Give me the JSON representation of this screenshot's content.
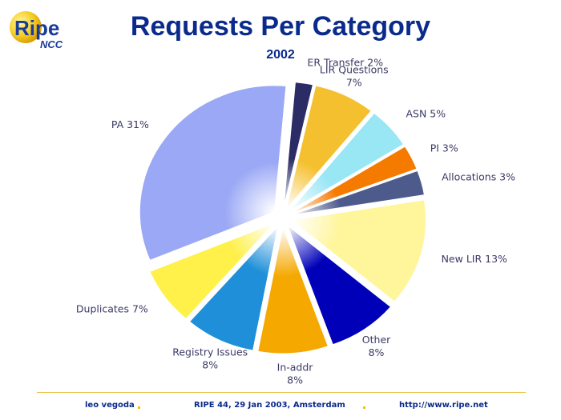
{
  "logo": {
    "text_main": "Ripe",
    "text_sub": "NCC"
  },
  "header": {
    "title": "Requests Per Category",
    "subtitle": "2002"
  },
  "chart_data": {
    "type": "pie",
    "title": "Requests Per Category",
    "subtitle": "2002",
    "slices": [
      {
        "name": "ER Transfer",
        "label": "ER Transfer 2%",
        "label_lines": [
          "ER Transfer 2%"
        ],
        "value": 2,
        "color": "#2b2b66"
      },
      {
        "name": "LIR Questions",
        "label": "LIR Questions 7%",
        "label_lines": [
          "LIR Questions",
          "7%"
        ],
        "value": 7,
        "color": "#f5c030"
      },
      {
        "name": "ASN",
        "label": "ASN 5%",
        "label_lines": [
          "ASN 5%"
        ],
        "value": 5,
        "color": "#99e6f5"
      },
      {
        "name": "PI",
        "label": "PI 3%",
        "label_lines": [
          "PI 3%"
        ],
        "value": 3,
        "color": "#f57a00"
      },
      {
        "name": "Allocations",
        "label": "Allocations 3%",
        "label_lines": [
          "Allocations 3%"
        ],
        "value": 3,
        "color": "#4d5a8c"
      },
      {
        "name": "New LIR",
        "label": "New LIR 13%",
        "label_lines": [
          "New LIR 13%"
        ],
        "value": 13,
        "color": "#fff59a"
      },
      {
        "name": "Other",
        "label": "Other 8%",
        "label_lines": [
          "Other",
          "8%"
        ],
        "value": 8,
        "color": "#0000b8"
      },
      {
        "name": "In-addr",
        "label": "In-addr 8%",
        "label_lines": [
          "In-addr",
          "8%"
        ],
        "value": 8,
        "color": "#f5a800"
      },
      {
        "name": "Registry Issues",
        "label": "Registry Issues 8%",
        "label_lines": [
          "Registry Issues",
          "8%"
        ],
        "value": 8,
        "color": "#1e8fd8"
      },
      {
        "name": "Duplicates",
        "label": "Duplicates 7%",
        "label_lines": [
          "Duplicates 7%"
        ],
        "value": 7,
        "color": "#fff04a"
      },
      {
        "name": "PA",
        "label": "PA 31%",
        "label_lines": [
          "PA 31%"
        ],
        "value": 31,
        "color": "#9aa8f5"
      }
    ]
  },
  "footer": {
    "author": "leo vegoda",
    "event": "RIPE 44, 29 Jan 2003, Amsterdam",
    "url": "http://www.ripe.net"
  }
}
